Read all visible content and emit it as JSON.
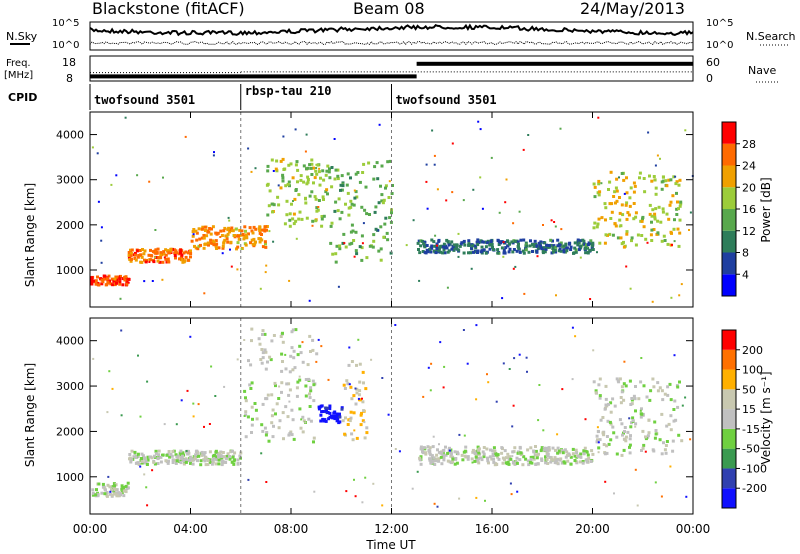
{
  "header": {
    "station": "Blackstone (fitACF)",
    "beam": "Beam 08",
    "date": "24/May/2013"
  },
  "noise_panel": {
    "left_label": "N.Sky",
    "right_label": "N.Search",
    "left_ticks": [
      "10^5",
      "10^0"
    ],
    "right_ticks": [
      "10^5",
      "10^0"
    ]
  },
  "freq_panel": {
    "left_label_line1": "Freq.",
    "left_label_line2": "[MHz]",
    "left_ticks": [
      "18",
      "8"
    ],
    "right_label": "Nave",
    "right_ticks": [
      "60",
      "0"
    ]
  },
  "cpid_panel": {
    "label": "CPID",
    "segments": [
      {
        "name": "twofsound 3501",
        "start_hour": 0,
        "end_hour": 6
      },
      {
        "name": "rbsp-tau 210",
        "start_hour": 6,
        "end_hour": 12
      },
      {
        "name": "twofsound 3501",
        "start_hour": 12,
        "end_hour": 24
      }
    ]
  },
  "colors": {
    "power": [
      "#0000ff",
      "#1f3fa0",
      "#2e7d5a",
      "#58a84c",
      "#9ccc3a",
      "#f0a000",
      "#ff6a00",
      "#ff0000"
    ],
    "velocity": [
      "#1010ff",
      "#3040b0",
      "#3a9a50",
      "#6fd040",
      "#c0c0c0",
      "#c8c8b0",
      "#ffb000",
      "#ff7000",
      "#ff0000"
    ]
  },
  "power_panel": {
    "ylabel": "Slant Range [km]",
    "yticks": [
      "1000",
      "2000",
      "3000",
      "4000"
    ],
    "colorbar_label": "Power [dB]",
    "colorbar_ticks": [
      "28",
      "24",
      "20",
      "16",
      "12",
      "8",
      "4"
    ]
  },
  "velocity_panel": {
    "ylabel": "Slant Range [km]",
    "yticks": [
      "1000",
      "2000",
      "3000",
      "4000"
    ],
    "colorbar_label": "Velocity [m s⁻¹]",
    "colorbar_ticks": [
      "200",
      "100",
      "50",
      "15",
      "-15",
      "-50",
      "-100",
      "-200"
    ]
  },
  "xaxis": {
    "label": "Time UT",
    "ticks": [
      "00:00",
      "04:00",
      "08:00",
      "12:00",
      "16:00",
      "20:00",
      "00:00"
    ]
  },
  "chart_data": {
    "type": "heatmap",
    "title": "Blackstone (fitACF)",
    "subtitle": "Beam 08",
    "xlabel": "Time UT",
    "ylabel": "Slant Range [km]",
    "xlim": [
      0,
      24
    ],
    "ylim": [
      180,
      4500
    ],
    "grid": false,
    "panels": [
      {
        "name": "Power [dB]",
        "range": [
          0,
          30
        ],
        "echo_bands": [
          {
            "t_start": 0.0,
            "t_end": 1.5,
            "range_km": [
              700,
              900
            ],
            "value": 26
          },
          {
            "t_start": 1.5,
            "t_end": 4.0,
            "range_km": [
              1200,
              1500
            ],
            "value": 24
          },
          {
            "t_start": 4.0,
            "t_end": 7.0,
            "range_km": [
              1500,
              2000
            ],
            "value": 22
          },
          {
            "t_start": 7.0,
            "t_end": 9.5,
            "range_km": [
              2000,
              3500
            ],
            "value": 16
          },
          {
            "t_start": 9.5,
            "t_end": 12.0,
            "range_km": [
              1200,
              3500
            ],
            "value": 14
          },
          {
            "t_start": 13.0,
            "t_end": 20.0,
            "range_km": [
              1400,
              1700
            ],
            "value": 8
          },
          {
            "t_start": 20.0,
            "t_end": 23.5,
            "range_km": [
              1500,
              3200
            ],
            "value": 18
          }
        ]
      },
      {
        "name": "Velocity [m s⁻¹]",
        "range": [
          -200,
          200
        ],
        "echo_bands": [
          {
            "t_start": 0.0,
            "t_end": 1.5,
            "range_km": [
              600,
              900
            ],
            "value": 0
          },
          {
            "t_start": 1.5,
            "t_end": 6.0,
            "range_km": [
              1300,
              1600
            ],
            "value": 0
          },
          {
            "t_start": 6.0,
            "t_end": 9.0,
            "range_km": [
              1800,
              4300
            ],
            "value": 0
          },
          {
            "t_start": 9.0,
            "t_end": 10.0,
            "range_km": [
              2200,
              2600
            ],
            "value": -200
          },
          {
            "t_start": 10.0,
            "t_end": 11.0,
            "range_km": [
              1800,
              3600
            ],
            "value": 60
          },
          {
            "t_start": 13.0,
            "t_end": 20.0,
            "range_km": [
              1300,
              1700
            ],
            "value": 0
          },
          {
            "t_start": 20.0,
            "t_end": 23.5,
            "range_km": [
              1500,
              3200
            ],
            "value": 0
          }
        ]
      }
    ],
    "frequency_mhz": [
      {
        "t_start": 0,
        "t_end": 13,
        "value": 10
      },
      {
        "t_start": 13,
        "t_end": 24,
        "value": 17
      }
    ],
    "nave": [
      {
        "t_start": 0,
        "t_end": 6,
        "value": 20
      },
      {
        "t_start": 6,
        "t_end": 24,
        "value": 22
      }
    ]
  }
}
